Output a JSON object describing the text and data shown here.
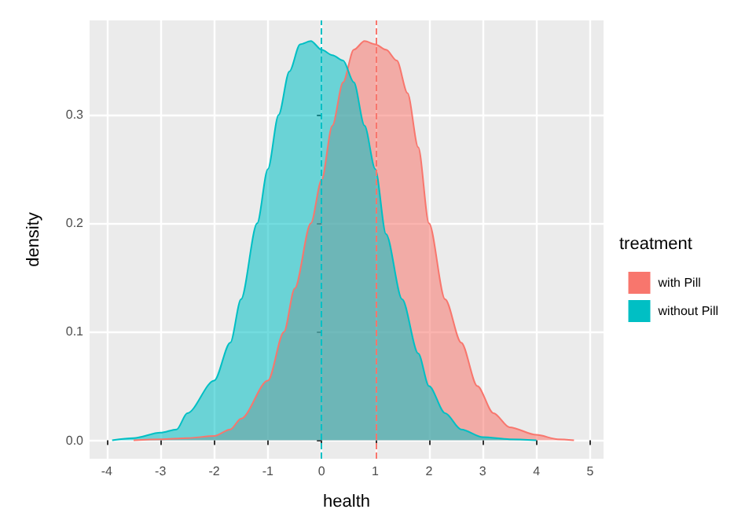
{
  "chart_data": {
    "type": "area",
    "xlabel": "health",
    "ylabel": "density",
    "legend_title": "treatment",
    "legend": "right",
    "grid": true,
    "xlim": [
      -4.32,
      5.25
    ],
    "ylim": [
      -0.017,
      0.387
    ],
    "xticks": [
      -4,
      -3,
      -2,
      -1,
      0,
      1,
      2,
      3,
      4,
      5
    ],
    "yticks": [
      {
        "value": 0,
        "label": "0.0"
      },
      {
        "value": 0.1,
        "label": "0.1"
      },
      {
        "value": 0.2,
        "label": "0.2"
      },
      {
        "value": 0.3,
        "label": "0.3"
      }
    ],
    "series": [
      {
        "name": "with Pill",
        "color": "#f8766d",
        "x": [
          -3.5,
          -3,
          -2.5,
          -2,
          -1.7,
          -1.5,
          -1,
          -0.7,
          -0.5,
          -0.2,
          0,
          0.2,
          0.4,
          0.6,
          0.8,
          1,
          1.2,
          1.4,
          1.6,
          1.8,
          2,
          2.3,
          2.6,
          2.9,
          3.2,
          3.5,
          4,
          4.4,
          4.7
        ],
        "values": [
          0,
          0.001,
          0.002,
          0.004,
          0.01,
          0.02,
          0.055,
          0.1,
          0.14,
          0.2,
          0.24,
          0.29,
          0.33,
          0.36,
          0.368,
          0.365,
          0.36,
          0.35,
          0.32,
          0.27,
          0.2,
          0.13,
          0.09,
          0.05,
          0.025,
          0.012,
          0.005,
          0.001,
          0
        ]
      },
      {
        "name": "without Pill",
        "color": "#00bfc4",
        "x": [
          -3.9,
          -3.5,
          -3,
          -2.7,
          -2.5,
          -2,
          -1.7,
          -1.5,
          -1.2,
          -1,
          -0.8,
          -0.6,
          -0.4,
          -0.2,
          0,
          0.2,
          0.4,
          0.6,
          0.8,
          1,
          1.2,
          1.5,
          1.8,
          2,
          2.3,
          2.6,
          3,
          3.5,
          4
        ],
        "values": [
          0,
          0.002,
          0.007,
          0.01,
          0.025,
          0.055,
          0.09,
          0.13,
          0.2,
          0.25,
          0.3,
          0.34,
          0.365,
          0.368,
          0.36,
          0.355,
          0.35,
          0.33,
          0.29,
          0.25,
          0.19,
          0.13,
          0.08,
          0.05,
          0.025,
          0.01,
          0.003,
          0.001,
          0
        ]
      }
    ],
    "ref_lines": [
      {
        "axis": "x",
        "value": 1,
        "label": null,
        "color": "#f8766d",
        "line_style": "dashed"
      },
      {
        "axis": "x",
        "value": 0,
        "label": null,
        "color": "#00bfc4",
        "line_style": "dashed"
      }
    ]
  }
}
